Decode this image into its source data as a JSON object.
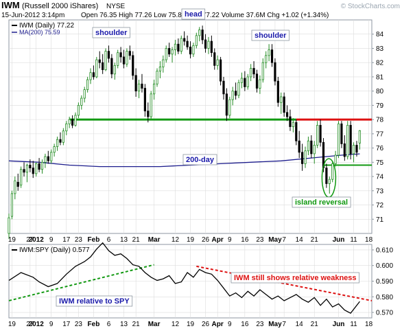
{
  "header": {
    "symbol": "IWM",
    "name": "(Russell 2000 iShares)",
    "exchange": "NYSE",
    "date": "15-Jun-2012 3:14pm",
    "stats": "Open 76.35  High 77.26  Low 75.89  Last 77.22  Volume 37.6M  Chg +1.02 (+1.34%)",
    "watermark": "© StockCharts.com"
  },
  "legend": {
    "price": "IWM (Daily) 77.22",
    "ma": "MA(200) 75.59",
    "ratio": "IWM:SPY (Daily) 0.577"
  },
  "colors": {
    "background": "#ffffff",
    "panel_bg": "#ffffff",
    "frame": "#8c96a0",
    "grid": "#dcdcdc",
    "candle_up": "#228b22",
    "candle_down": "#000000",
    "ma_line": "#1c1c8c",
    "support": "#119911",
    "resistance": "#dd1111",
    "annotation_text": "#1a1aaa",
    "red_text": "#dd1111"
  },
  "x_axis": {
    "ticks": [
      {
        "label": "19",
        "x": 1
      },
      {
        "label": "27",
        "x": 7
      },
      {
        "label": "2012",
        "x": 9
      },
      {
        "label": "9",
        "x": 14
      },
      {
        "label": "17",
        "x": 19
      },
      {
        "label": "23",
        "x": 23
      },
      {
        "label": "Feb",
        "x": 28
      },
      {
        "label": "6",
        "x": 33
      },
      {
        "label": "13",
        "x": 38
      },
      {
        "label": "21",
        "x": 42
      },
      {
        "label": "Mar",
        "x": 48
      },
      {
        "label": "12",
        "x": 55
      },
      {
        "label": "19",
        "x": 60
      },
      {
        "label": "26",
        "x": 65
      },
      {
        "label": "Apr",
        "x": 69
      },
      {
        "label": "9",
        "x": 73
      },
      {
        "label": "16",
        "x": 78
      },
      {
        "label": "23",
        "x": 83
      },
      {
        "label": "May",
        "x": 88
      },
      {
        "label": "7",
        "x": 91
      },
      {
        "label": "14",
        "x": 96
      },
      {
        "label": "21",
        "x": 101
      },
      {
        "label": "Jun",
        "x": 109
      },
      {
        "label": "11",
        "x": 114
      },
      {
        "label": "18",
        "x": 119
      }
    ],
    "bold_labels": [
      "2012",
      "Feb",
      "Mar",
      "Apr",
      "May",
      "Jun"
    ],
    "xlim": [
      0,
      120
    ]
  },
  "chart_data": [
    {
      "type": "candlestick",
      "title": "IWM (Daily) 77.22",
      "ylim": [
        70,
        85
      ],
      "yticks": [
        71,
        72,
        73,
        74,
        75,
        76,
        77,
        78,
        79,
        80,
        81,
        82,
        83,
        84
      ],
      "grid": false,
      "candles": [
        [
          0,
          70.0,
          71.4,
          69.6,
          71.1
        ],
        [
          1,
          71.2,
          73.0,
          71.0,
          72.8
        ],
        [
          2,
          72.8,
          74.0,
          72.4,
          73.7
        ],
        [
          3,
          73.6,
          74.2,
          73.0,
          73.3
        ],
        [
          4,
          73.4,
          74.7,
          73.2,
          74.5
        ],
        [
          5,
          74.5,
          75.0,
          74.0,
          74.3
        ],
        [
          6,
          74.3,
          74.9,
          73.6,
          74.8
        ],
        [
          7,
          74.8,
          75.2,
          74.3,
          74.6
        ],
        [
          8,
          74.6,
          75.1,
          73.9,
          74.2
        ],
        [
          9,
          74.2,
          75.0,
          74.0,
          74.9
        ],
        [
          10,
          74.9,
          75.3,
          74.3,
          74.5
        ],
        [
          11,
          74.5,
          75.2,
          74.2,
          75.0
        ],
        [
          12,
          75.0,
          75.6,
          74.6,
          75.4
        ],
        [
          13,
          75.4,
          75.8,
          74.9,
          75.1
        ],
        [
          14,
          75.1,
          75.9,
          74.9,
          75.7
        ],
        [
          15,
          75.7,
          76.3,
          75.4,
          76.1
        ],
        [
          16,
          76.1,
          76.8,
          75.8,
          76.6
        ],
        [
          17,
          76.6,
          77.1,
          76.2,
          76.4
        ],
        [
          18,
          76.4,
          77.4,
          76.2,
          77.2
        ],
        [
          19,
          77.2,
          77.9,
          76.9,
          77.7
        ],
        [
          20,
          77.7,
          78.2,
          77.4,
          78.0
        ],
        [
          21,
          78.0,
          78.3,
          77.4,
          77.6
        ],
        [
          22,
          77.6,
          78.5,
          77.5,
          78.3
        ],
        [
          23,
          78.3,
          79.2,
          78.1,
          79.0
        ],
        [
          24,
          79.0,
          79.7,
          78.7,
          79.5
        ],
        [
          25,
          79.5,
          80.3,
          79.2,
          80.1
        ],
        [
          26,
          80.1,
          81.0,
          79.9,
          80.8
        ],
        [
          27,
          80.8,
          81.6,
          80.5,
          81.3
        ],
        [
          28,
          81.3,
          81.8,
          80.8,
          81.0
        ],
        [
          29,
          81.0,
          82.4,
          80.9,
          82.2
        ],
        [
          30,
          82.2,
          82.8,
          81.6,
          82.0
        ],
        [
          31,
          82.0,
          82.6,
          81.2,
          81.5
        ],
        [
          32,
          81.5,
          83.0,
          81.4,
          82.8
        ],
        [
          33,
          82.8,
          83.2,
          82.0,
          82.3
        ],
        [
          34,
          82.3,
          82.6,
          80.9,
          81.2
        ],
        [
          35,
          81.2,
          82.0,
          80.8,
          81.8
        ],
        [
          36,
          81.8,
          82.9,
          81.6,
          82.7
        ],
        [
          37,
          82.7,
          83.1,
          82.0,
          82.4
        ],
        [
          38,
          82.4,
          82.9,
          81.6,
          81.9
        ],
        [
          39,
          81.9,
          83.0,
          81.7,
          82.8
        ],
        [
          40,
          82.8,
          83.2,
          82.2,
          82.5
        ],
        [
          41,
          82.5,
          82.8,
          80.8,
          81.1
        ],
        [
          42,
          81.1,
          81.6,
          79.6,
          80.0
        ],
        [
          43,
          80.0,
          80.8,
          79.5,
          80.5
        ],
        [
          44,
          80.5,
          81.2,
          79.9,
          80.2
        ],
        [
          45,
          80.2,
          80.5,
          78.2,
          78.6
        ],
        [
          46,
          78.6,
          79.2,
          77.8,
          78.2
        ],
        [
          47,
          78.2,
          80.0,
          78.0,
          79.8
        ],
        [
          48,
          79.8,
          80.8,
          79.4,
          80.5
        ],
        [
          49,
          80.5,
          81.6,
          80.3,
          81.4
        ],
        [
          50,
          81.4,
          82.1,
          80.9,
          81.7
        ],
        [
          51,
          81.7,
          82.5,
          81.3,
          82.2
        ],
        [
          52,
          82.2,
          83.2,
          82.0,
          83.0
        ],
        [
          53,
          83.0,
          83.4,
          82.4,
          82.6
        ],
        [
          54,
          82.6,
          83.1,
          82.0,
          82.9
        ],
        [
          55,
          82.9,
          83.6,
          82.5,
          83.3
        ],
        [
          56,
          83.3,
          83.7,
          82.6,
          82.8
        ],
        [
          57,
          82.8,
          83.9,
          82.6,
          83.7
        ],
        [
          58,
          83.7,
          84.2,
          83.2,
          83.5
        ],
        [
          59,
          83.5,
          83.9,
          82.9,
          83.1
        ],
        [
          60,
          83.1,
          83.5,
          82.3,
          82.6
        ],
        [
          61,
          82.6,
          83.4,
          82.4,
          83.2
        ],
        [
          62,
          83.2,
          84.1,
          83.0,
          83.9
        ],
        [
          63,
          83.9,
          84.5,
          83.5,
          84.3
        ],
        [
          64,
          84.3,
          84.6,
          83.3,
          83.6
        ],
        [
          65,
          83.6,
          84.0,
          82.7,
          83.0
        ],
        [
          66,
          83.0,
          83.8,
          82.6,
          83.5
        ],
        [
          67,
          83.5,
          83.9,
          82.4,
          82.7
        ],
        [
          68,
          82.7,
          83.0,
          81.5,
          81.8
        ],
        [
          69,
          81.8,
          82.5,
          81.5,
          82.2
        ],
        [
          70,
          82.2,
          82.4,
          80.4,
          80.7
        ],
        [
          71,
          80.7,
          81.0,
          79.4,
          79.8
        ],
        [
          72,
          79.8,
          80.2,
          77.9,
          78.3
        ],
        [
          73,
          78.3,
          79.6,
          78.1,
          79.4
        ],
        [
          74,
          79.4,
          80.3,
          79.0,
          80.0
        ],
        [
          75,
          80.0,
          80.6,
          79.4,
          79.7
        ],
        [
          76,
          79.7,
          80.8,
          79.5,
          80.6
        ],
        [
          77,
          80.6,
          81.3,
          80.2,
          80.9
        ],
        [
          78,
          80.9,
          81.4,
          80.0,
          80.3
        ],
        [
          79,
          80.3,
          81.2,
          80.1,
          81.0
        ],
        [
          80,
          81.0,
          81.9,
          80.7,
          81.6
        ],
        [
          81,
          81.6,
          82.1,
          80.9,
          81.2
        ],
        [
          82,
          81.2,
          81.5,
          79.9,
          80.2
        ],
        [
          83,
          80.2,
          81.1,
          79.8,
          80.8
        ],
        [
          84,
          80.8,
          82.3,
          80.6,
          82.0
        ],
        [
          85,
          82.0,
          82.8,
          81.6,
          82.5
        ],
        [
          86,
          82.5,
          83.3,
          82.1,
          82.9
        ],
        [
          87,
          82.9,
          83.3,
          81.7,
          82.0
        ],
        [
          88,
          82.0,
          82.3,
          80.4,
          80.7
        ],
        [
          89,
          80.7,
          81.0,
          78.9,
          79.2
        ],
        [
          90,
          79.2,
          79.9,
          78.4,
          79.6
        ],
        [
          91,
          79.6,
          79.9,
          78.2,
          78.5
        ],
        [
          92,
          78.5,
          79.0,
          77.9,
          78.2
        ],
        [
          93,
          78.2,
          78.7,
          77.2,
          77.5
        ],
        [
          94,
          77.5,
          78.1,
          77.1,
          77.8
        ],
        [
          95,
          77.8,
          78.0,
          76.2,
          76.5
        ],
        [
          96,
          76.5,
          77.2,
          75.3,
          75.7
        ],
        [
          97,
          75.7,
          76.3,
          74.4,
          74.9
        ],
        [
          98,
          74.9,
          76.1,
          74.6,
          75.8
        ],
        [
          99,
          75.8,
          76.8,
          75.5,
          76.5
        ],
        [
          100,
          76.5,
          76.9,
          75.3,
          75.6
        ],
        [
          101,
          75.6,
          76.5,
          74.9,
          76.2
        ],
        [
          102,
          76.2,
          77.9,
          76.0,
          77.6
        ],
        [
          103,
          77.6,
          78.0,
          76.1,
          76.4
        ],
        [
          104,
          76.4,
          76.7,
          74.3,
          74.6
        ],
        [
          105,
          74.6,
          74.9,
          73.2,
          73.5
        ],
        [
          106,
          73.5,
          74.0,
          72.8,
          73.8
        ],
        [
          107,
          73.8,
          75.1,
          73.6,
          74.9
        ],
        [
          108,
          74.9,
          75.8,
          74.7,
          75.5
        ],
        [
          109,
          75.5,
          77.9,
          75.3,
          77.7
        ],
        [
          110,
          77.7,
          77.9,
          76.0,
          76.3
        ],
        [
          111,
          76.3,
          76.9,
          75.1,
          75.4
        ],
        [
          112,
          75.4,
          77.9,
          75.2,
          77.6
        ],
        [
          113,
          77.6,
          77.9,
          75.2,
          75.6
        ],
        [
          114,
          75.6,
          76.4,
          75.0,
          76.2
        ],
        [
          115,
          76.2,
          76.5,
          75.4,
          75.7
        ],
        [
          116,
          76.35,
          77.26,
          75.89,
          77.22
        ]
      ],
      "ma200": [
        [
          0,
          75.1
        ],
        [
          10,
          75.0
        ],
        [
          20,
          74.8
        ],
        [
          30,
          74.7
        ],
        [
          40,
          74.7
        ],
        [
          50,
          74.7
        ],
        [
          60,
          74.8
        ],
        [
          70,
          74.9
        ],
        [
          80,
          75.0
        ],
        [
          90,
          75.1
        ],
        [
          100,
          75.3
        ],
        [
          110,
          75.5
        ],
        [
          116,
          75.59
        ]
      ],
      "support_line": {
        "y": 78.0,
        "x_start": 20,
        "x_end": 95
      },
      "resistance_line": {
        "y": 78.0,
        "x_start": 95,
        "x_end": 120
      },
      "island_line": {
        "y": 74.8,
        "x_start": 104,
        "x_end": 120
      },
      "annotations": {
        "left_shoulder": "shoulder",
        "head": "head",
        "right_shoulder": "shoulder",
        "ma_label": "200-day",
        "island": "island reversal"
      }
    },
    {
      "type": "line",
      "title": "IWM:SPY (Daily) 0.577",
      "ylim": [
        0.5665,
        0.6135
      ],
      "yticks": [
        0.57,
        0.58,
        0.59,
        0.6,
        0.61
      ],
      "grid": false,
      "x": [
        0,
        4,
        8,
        10,
        13,
        16,
        19,
        22,
        25,
        27,
        29,
        31,
        33,
        35,
        37,
        39,
        41,
        43,
        45,
        47,
        49,
        51,
        53,
        55,
        57,
        59,
        61,
        63,
        65,
        67,
        69,
        71,
        73,
        75,
        77,
        79,
        81,
        83,
        85,
        87,
        89,
        91,
        93,
        95,
        97,
        99,
        101,
        103,
        105,
        107,
        109,
        111,
        113,
        116
      ],
      "values": [
        0.5905,
        0.5955,
        0.5925,
        0.5895,
        0.5865,
        0.5885,
        0.5945,
        0.5995,
        0.6025,
        0.6055,
        0.6105,
        0.6145,
        0.6095,
        0.6065,
        0.6075,
        0.6045,
        0.6005,
        0.5995,
        0.5955,
        0.5925,
        0.5905,
        0.5915,
        0.5935,
        0.5885,
        0.5895,
        0.5955,
        0.5925,
        0.5975,
        0.5955,
        0.5945,
        0.5905,
        0.5855,
        0.5805,
        0.5825,
        0.5795,
        0.5835,
        0.5805,
        0.5845,
        0.5815,
        0.5785,
        0.5805,
        0.5775,
        0.5795,
        0.5815,
        0.5785,
        0.5765,
        0.5795,
        0.5745,
        0.5785,
        0.5735,
        0.5755,
        0.5715,
        0.5695,
        0.577
      ],
      "trend_green": {
        "x1": 0,
        "y1": 0.5775,
        "x2": 48,
        "y2": 0.6005
      },
      "trend_red": {
        "x1": 62,
        "y1": 0.5995,
        "x2": 120,
        "y2": 0.5775
      },
      "annotations": {
        "relative": "IWM relative to SPY",
        "weakness": "IWM still shows relative weakness"
      }
    }
  ]
}
